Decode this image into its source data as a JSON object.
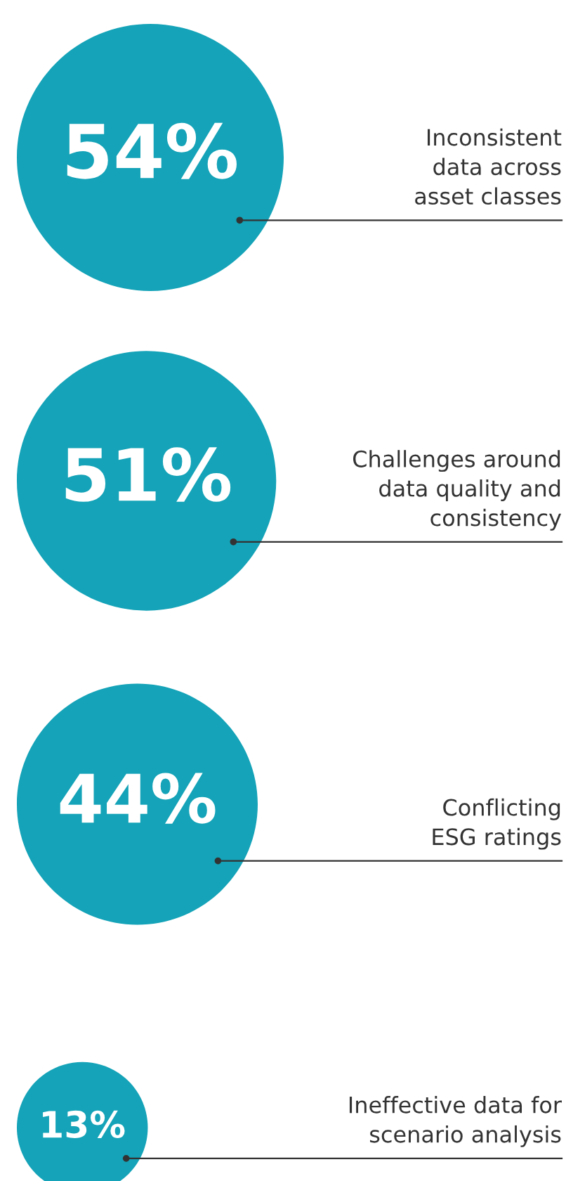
{
  "chart_data": {
    "type": "other",
    "categories": [
      "Inconsistent\ndata across\nasset classes",
      "Challenges around\ndata quality and\nconsistency",
      "Conflicting\nESG ratings",
      "Ineffective data for\nscenario analysis"
    ],
    "values": [
      54,
      51,
      44,
      13
    ],
    "value_labels": [
      "54%",
      "51%",
      "44%",
      "13%"
    ],
    "color": "#14a3b8"
  }
}
